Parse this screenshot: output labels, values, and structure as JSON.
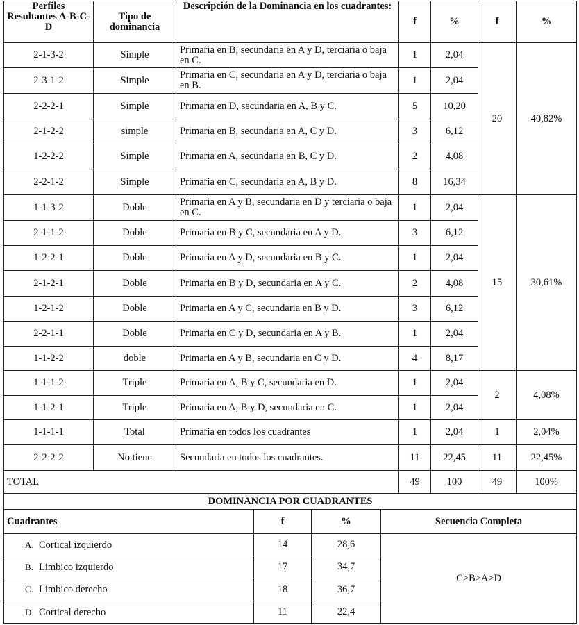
{
  "table1": {
    "headers": [
      "Perfiles Resultantes A-B-C-D",
      "Tipo de dominancia",
      "Descripción de la Dominancia en los cuadrantes:",
      "f",
      "%",
      "f",
      "%"
    ],
    "rows": [
      {
        "perfil": "2-1-3-2",
        "tipo": "Simple",
        "desc": "Primaria en B, secundaria en A y D, terciaria o baja en C.",
        "f": "1",
        "pct": "2,04"
      },
      {
        "perfil": "2-3-1-2",
        "tipo": "Simple",
        "desc": "Primaria en C, secundaria en A y D, terciaria o baja en B.",
        "f": "1",
        "pct": "2,04"
      },
      {
        "perfil": "2-2-2-1",
        "tipo": "Simple",
        "desc": "Primaria en D, secundaria en A, B y C.",
        "f": "5",
        "pct": "10,20"
      },
      {
        "perfil": "2-1-2-2",
        "tipo": "simple",
        "desc": "Primaria en B, secundaria en A, C y D.",
        "f": "3",
        "pct": "6,12"
      },
      {
        "perfil": "1-2-2-2",
        "tipo": "Simple",
        "desc": "Primaria en A, secundaria en B, C y D.",
        "f": "2",
        "pct": "4,08"
      },
      {
        "perfil": "2-2-1-2",
        "tipo": "Simple",
        "desc": "Primaria en C, secundaria en A, B y D.",
        "f": "8",
        "pct": "16,34"
      },
      {
        "perfil": "1-1-3-2",
        "tipo": "Doble",
        "desc": "Primaria en A y B, secundaria en D y terciaria o baja en C.",
        "f": "1",
        "pct": "2,04"
      },
      {
        "perfil": "2-1-1-2",
        "tipo": "Doble",
        "desc": "Primaria en B y C, secundaria en A y D.",
        "f": "3",
        "pct": "6,12"
      },
      {
        "perfil": "1-2-2-1",
        "tipo": "Doble",
        "desc": "Primaria en A y D, secundaria en B y C.",
        "f": "1",
        "pct": "2,04"
      },
      {
        "perfil": "2-1-2-1",
        "tipo": "Doble",
        "desc": "Primaria en B y D, secundaria en A y C.",
        "f": "2",
        "pct": "4,08"
      },
      {
        "perfil": "1-2-1-2",
        "tipo": "Doble",
        "desc": "Primaria en A y C, secundaria en B y D.",
        "f": "3",
        "pct": "6,12"
      },
      {
        "perfil": "2-2-1-1",
        "tipo": "Doble",
        "desc": "Primaria en C y D, secundaria en A y B.",
        "f": "1",
        "pct": "2,04"
      },
      {
        "perfil": "1-1-2-2",
        "tipo": "doble",
        "desc": "Primaria en A y B, secundaria en C y D.",
        "f": "4",
        "pct": "8,17"
      },
      {
        "perfil": "1-1-1-2",
        "tipo": "Triple",
        "desc": "Primaria en A, B y C, secundaria en D.",
        "f": "1",
        "pct": "2,04"
      },
      {
        "perfil": "1-1-2-1",
        "tipo": "Triple",
        "desc": "Primaria en A, B y D, secundaria en C.",
        "f": "1",
        "pct": "2,04"
      },
      {
        "perfil": "1-1-1-1",
        "tipo": "Total",
        "desc": "Primaria en todos los cuadrantes",
        "f": "1",
        "pct": "2,04"
      },
      {
        "perfil": "2-2-2-2",
        "tipo": "No tiene",
        "desc": "Secundaria en todos los cuadrantes.",
        "f": "11",
        "pct": "22,45"
      }
    ],
    "groups": [
      {
        "start": 0,
        "span": 6,
        "f": "20",
        "pct": "40,82%"
      },
      {
        "start": 6,
        "span": 7,
        "f": "15",
        "pct": "30,61%"
      },
      {
        "start": 13,
        "span": 2,
        "f": "2",
        "pct": "4,08%"
      },
      {
        "start": 15,
        "span": 1,
        "f": "1",
        "pct": "2,04%"
      },
      {
        "start": 16,
        "span": 1,
        "f": "11",
        "pct": "22,45%"
      }
    ],
    "total": {
      "label": "TOTAL",
      "f": "49",
      "pct": "100",
      "f2": "49",
      "pct2": "100%"
    }
  },
  "table2": {
    "title": "DOMINANCIA POR CUADRANTES",
    "headers": [
      "Cuadrantes",
      "f",
      "%",
      "Secuencia Completa"
    ],
    "rows": [
      {
        "letter": "A.",
        "name": "Cortical izquierdo",
        "f": "14",
        "pct": "28,6"
      },
      {
        "letter": "B.",
        "name": "Limbico izquierdo",
        "f": "17",
        "pct": "34,7"
      },
      {
        "letter": "C.",
        "name": "Limbico derecho",
        "f": "18",
        "pct": "36,7"
      },
      {
        "letter": "D.",
        "name": "Cortical derecho",
        "f": "11",
        "pct": "22,4"
      }
    ],
    "sequence": "C>B>A>D"
  }
}
